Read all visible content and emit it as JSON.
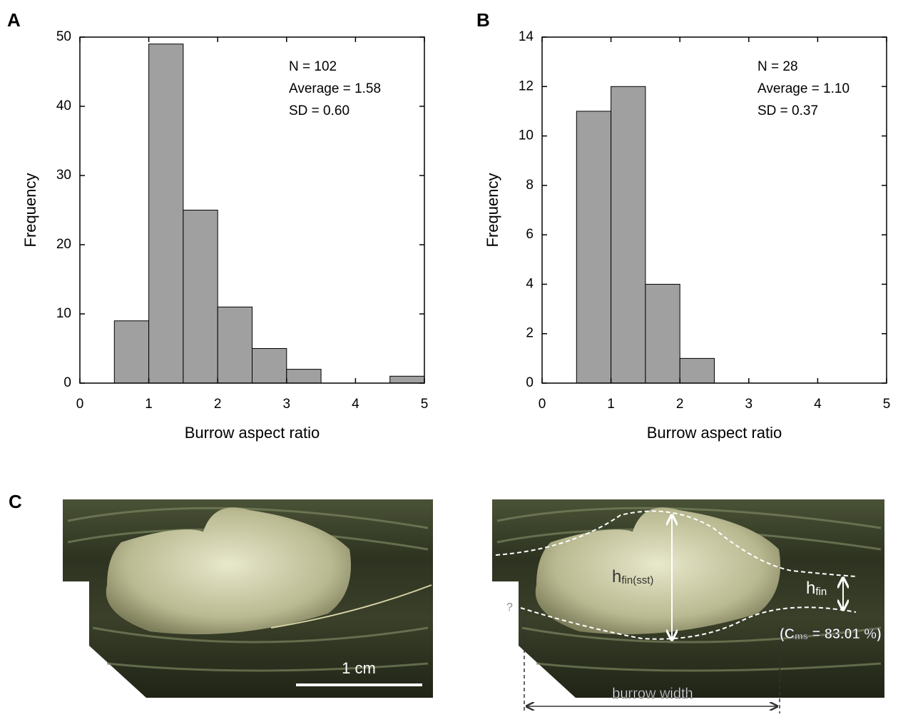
{
  "chart_data": [
    {
      "type": "histogram",
      "panel_label": "A",
      "xlabel": "Burrow aspect ratio",
      "ylabel": "Frequency",
      "bins": [
        0.5,
        1,
        1.5,
        2,
        2.5,
        3,
        3.5,
        4,
        4.5,
        5
      ],
      "values": [
        9,
        49,
        25,
        11,
        5,
        2,
        0,
        0,
        1
      ],
      "color": "#a0a0a0",
      "xlim": [
        0,
        5
      ],
      "ylim": [
        0,
        50
      ],
      "xticks": [
        0,
        1,
        2,
        3,
        4,
        5
      ],
      "yticks": [
        0,
        10,
        20,
        30,
        40,
        50
      ],
      "annotations": [
        "N = 102",
        "Average = 1.58",
        "SD = 0.60"
      ]
    },
    {
      "type": "histogram",
      "panel_label": "B",
      "xlabel": "Burrow aspect ratio",
      "ylabel": "Frequency",
      "bins": [
        0.5,
        1,
        1.5,
        2,
        2.5
      ],
      "values": [
        11,
        12,
        4,
        1
      ],
      "color": "#a0a0a0",
      "xlim": [
        0,
        5
      ],
      "ylim": [
        0,
        14
      ],
      "xticks": [
        0,
        1,
        2,
        3,
        4,
        5
      ],
      "yticks": [
        0,
        2,
        4,
        6,
        8,
        10,
        12,
        14
      ],
      "annotations": [
        "N = 28",
        "Average = 1.10",
        "SD = 0.37"
      ]
    }
  ],
  "panel_c": {
    "panel_label": "C",
    "scale_bar": "1 cm",
    "h_fin_sst": {
      "base": "h",
      "sub": "fin(sst)"
    },
    "h_fin": {
      "base": "h",
      "sub": "fin"
    },
    "c_ms": {
      "open": "(C",
      "sub": "ms",
      "rest": " = 83.01 %)"
    },
    "unknown": "?",
    "burrow_width": "burrow width"
  }
}
